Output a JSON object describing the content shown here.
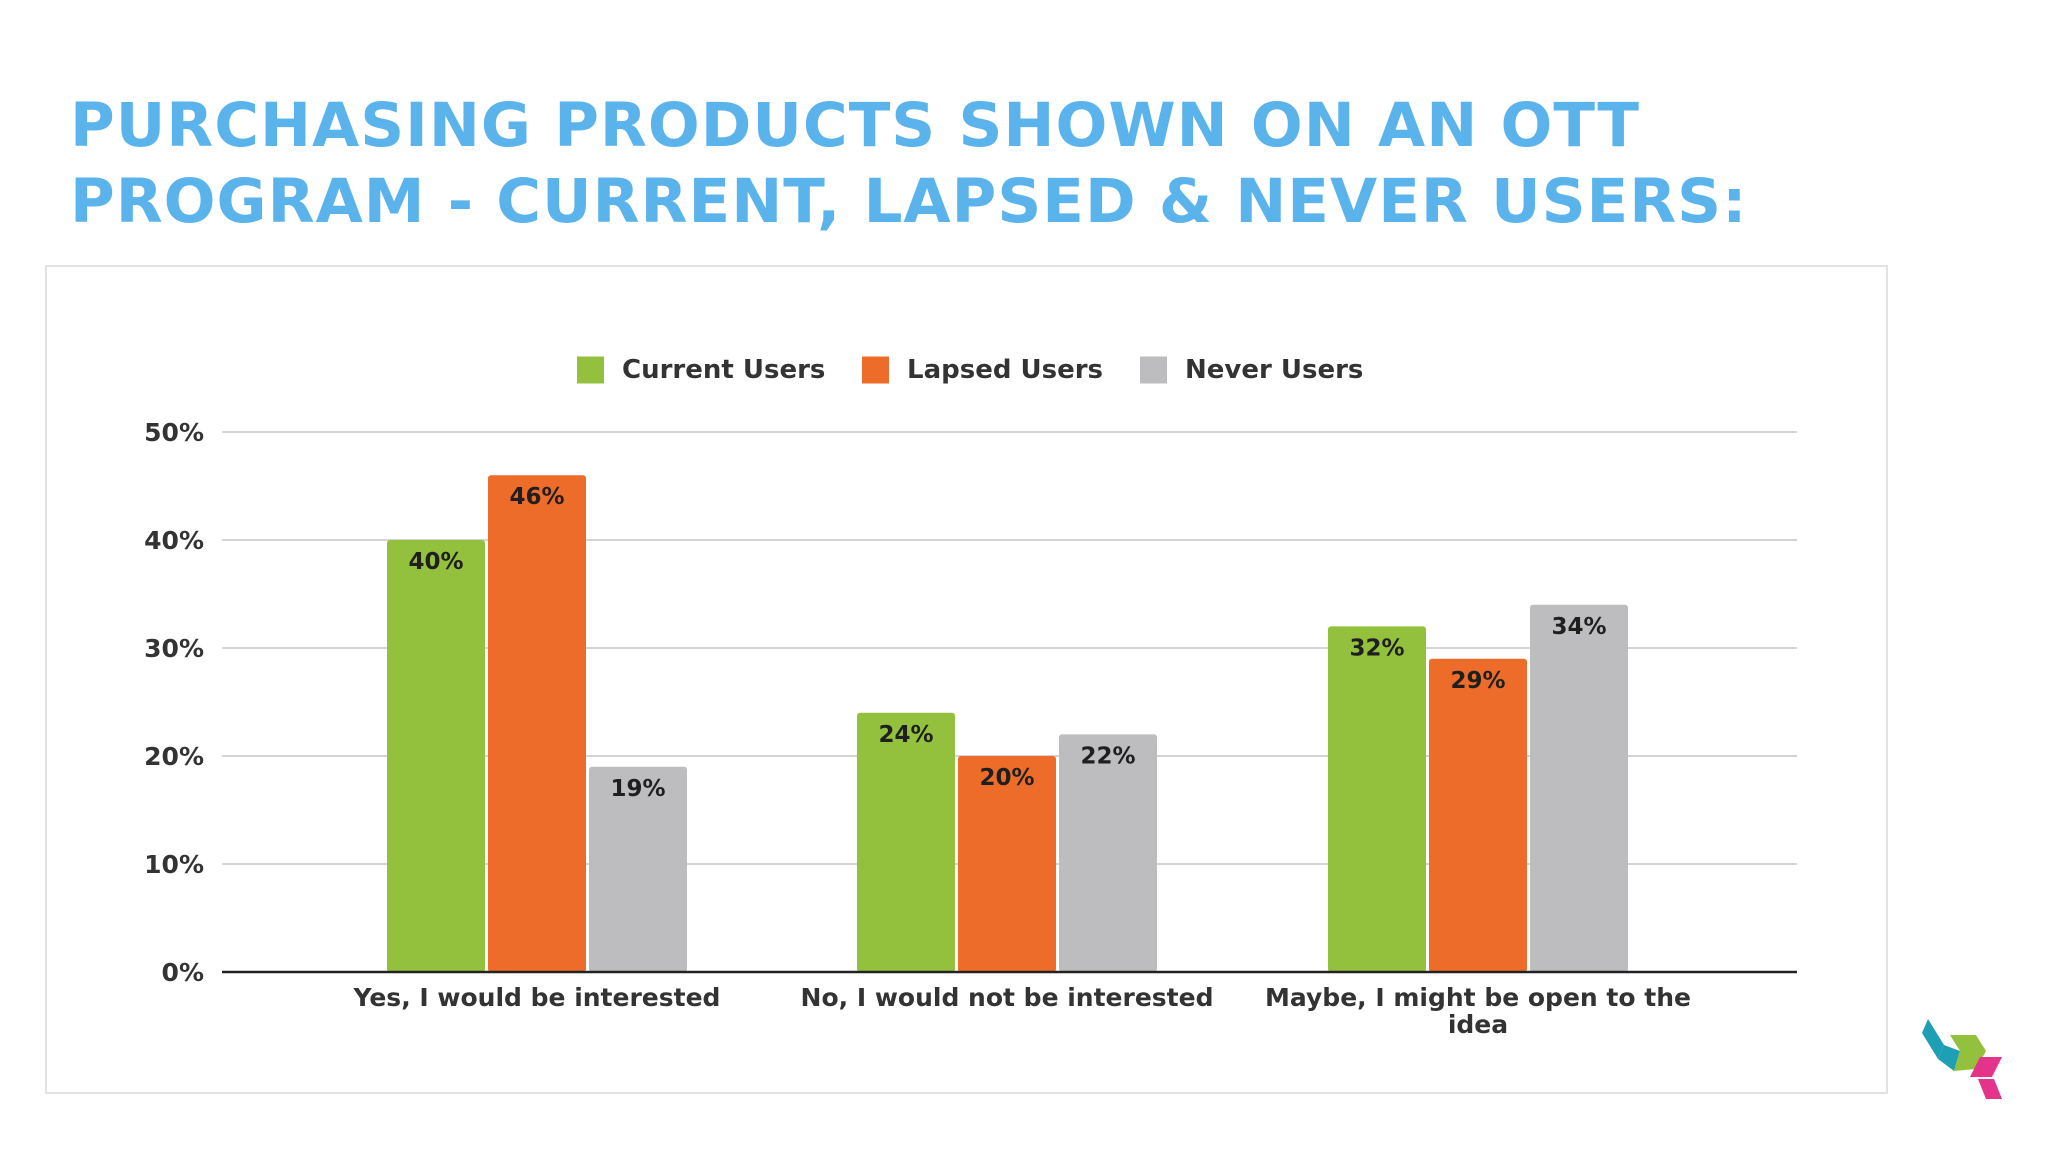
{
  "slide": {
    "title_line1": "PURCHASING PRODUCTS SHOWN ON AN OTT",
    "title_line2": "PROGRAM - CURRENT, LAPSED & NEVER USERS:"
  },
  "colors": {
    "title": "#5bb3ec",
    "current_users": "#94c13d",
    "lapsed_users": "#ee6c2a",
    "never_users": "#bdbcbe",
    "gridline": "#d4d4d4",
    "axis": "#222222",
    "text": "#333333"
  },
  "logo": {
    "icon": "isometric-cubes-logo-icon",
    "colors": [
      "#1e9fb4",
      "#94c13d",
      "#e3338a"
    ]
  },
  "chart_data": {
    "type": "bar",
    "title": "",
    "xlabel": "",
    "ylabel": "",
    "categories": [
      [
        "Yes, I would be interested"
      ],
      [
        "No, I would not be interested"
      ],
      [
        "Maybe, I might be open to the",
        "idea"
      ]
    ],
    "series": [
      {
        "name": "Current Users",
        "color": "#94c13d",
        "values": [
          40,
          24,
          32
        ],
        "labels": [
          "40%",
          "24%",
          "32%"
        ]
      },
      {
        "name": "Lapsed Users",
        "color": "#ee6c2a",
        "values": [
          46,
          20,
          29
        ],
        "labels": [
          "46%",
          "20%",
          "29%"
        ]
      },
      {
        "name": "Never Users",
        "color": "#bdbcbe",
        "values": [
          19,
          22,
          34
        ],
        "labels": [
          "19%",
          "22%",
          "34%"
        ]
      }
    ],
    "ylim": [
      0,
      50
    ],
    "yticks": [
      0,
      10,
      20,
      30,
      40,
      50
    ],
    "ytick_labels": [
      "0%",
      "10%",
      "20%",
      "30%",
      "40%",
      "50%"
    ],
    "grid": true,
    "legend": "top-center",
    "data_labels": "inside-top"
  }
}
